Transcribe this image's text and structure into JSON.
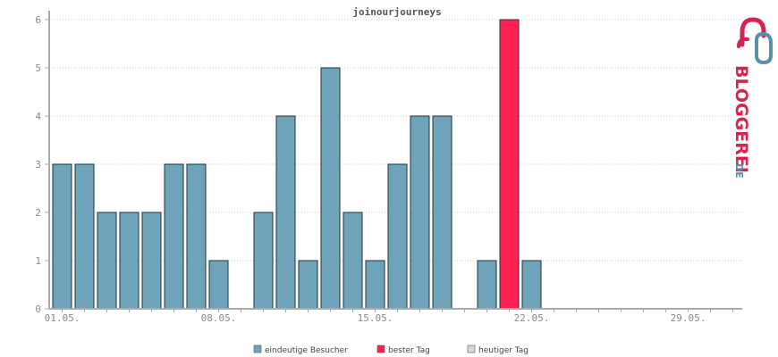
{
  "chart_data": {
    "type": "bar",
    "title": "joinourjourneys",
    "categories": [
      "01.05.",
      "02.05.",
      "03.05.",
      "04.05.",
      "05.05.",
      "06.05.",
      "07.05.",
      "08.05.",
      "09.05.",
      "10.05.",
      "11.05.",
      "12.05.",
      "13.05.",
      "14.05.",
      "15.05.",
      "16.05.",
      "17.05.",
      "18.05.",
      "19.05.",
      "20.05.",
      "21.05.",
      "22.05.",
      "23.05.",
      "24.05.",
      "25.05.",
      "26.05.",
      "27.05.",
      "28.05.",
      "29.05.",
      "30.05.",
      "31.05."
    ],
    "x_tick_labels": [
      "01.05.",
      "08.05.",
      "15.05.",
      "22.05.",
      "29.05."
    ],
    "series": [
      {
        "name": "eindeutige Besucher",
        "values": [
          3,
          3,
          2,
          2,
          2,
          3,
          3,
          1,
          0,
          2,
          4,
          1,
          5,
          2,
          1,
          3,
          4,
          4,
          0,
          1,
          6,
          1,
          0,
          0,
          0,
          0,
          0,
          0,
          0,
          0,
          0
        ]
      }
    ],
    "highlight_index": 20,
    "ylim": [
      0,
      6
    ],
    "y_ticks": [
      "0",
      "1",
      "2",
      "3",
      "4",
      "5",
      "6"
    ],
    "grid": true,
    "legend_placement": "bottom",
    "colors": {
      "bar": "#6ea3b9",
      "bar_stroke": "#1e3640",
      "best_day": "#ff2153",
      "today": "#d8d8d8",
      "axis": "#aaaaaa",
      "grid": "#cccccc",
      "logo_red": "#d6234f",
      "logo_blue": "#5a8fa8"
    },
    "legend": [
      {
        "label": "eindeutige Besucher",
        "color": "#6ea3b9"
      },
      {
        "label": "bester Tag",
        "color": "#ff2153"
      },
      {
        "label": "heutiger Tag",
        "color": "#d8d8d8"
      }
    ]
  },
  "logo": {
    "text": "BLOGGEREI",
    "suffix": ".DE",
    "icon": "bloggerei-logo-icon"
  }
}
